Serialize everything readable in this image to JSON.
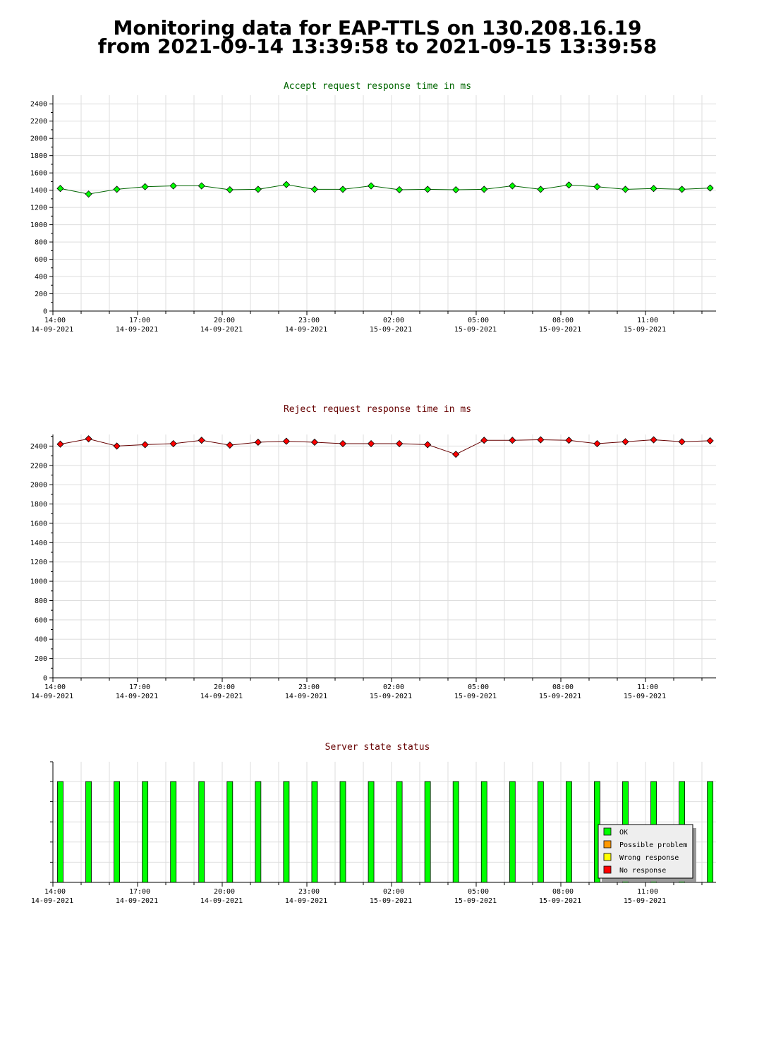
{
  "page": {
    "title_line1": "Monitoring data for EAP-TTLS on 130.208.16.19",
    "title_line2": "from 2021-09-14 13:39:58 to 2021-09-15 13:39:58"
  },
  "colors": {
    "accept_title": "#006600",
    "reject_title": "#660000",
    "status_title": "#660000",
    "accept_line": "#006600",
    "accept_marker": "#00ff00",
    "reject_line": "#660000",
    "reject_marker": "#ff0000",
    "ok_bar": "#00ff00",
    "grid": "#dddddd"
  },
  "x_axis": {
    "labels": [
      {
        "time": "14:00",
        "date": "14-09-2021"
      },
      {
        "time": "17:00",
        "date": "14-09-2021"
      },
      {
        "time": "20:00",
        "date": "14-09-2021"
      },
      {
        "time": "23:00",
        "date": "14-09-2021"
      },
      {
        "time": "02:00",
        "date": "15-09-2021"
      },
      {
        "time": "05:00",
        "date": "15-09-2021"
      },
      {
        "time": "08:00",
        "date": "15-09-2021"
      },
      {
        "time": "11:00",
        "date": "15-09-2021"
      }
    ]
  },
  "chart_data": [
    {
      "type": "line",
      "title": "Accept request response time in ms",
      "y_ticks": [
        "0",
        "200",
        "400",
        "600",
        "800",
        "1000",
        "1200",
        "1400",
        "1600",
        "1800",
        "2000",
        "2200",
        "2400"
      ],
      "ylim": [
        0,
        2500
      ],
      "grid": true,
      "values": [
        1420,
        1355,
        1410,
        1440,
        1450,
        1450,
        1405,
        1410,
        1465,
        1410,
        1410,
        1450,
        1405,
        1410,
        1405,
        1410,
        1450,
        1410,
        1460,
        1440,
        1410,
        1420,
        1410,
        1425
      ]
    },
    {
      "type": "line",
      "title": "Reject request response time in ms",
      "y_ticks": [
        "0",
        "200",
        "400",
        "600",
        "800",
        "1000",
        "1200",
        "1400",
        "1600",
        "1800",
        "2000",
        "2200",
        "2400"
      ],
      "ylim": [
        0,
        2520
      ],
      "grid": true,
      "values": [
        2420,
        2475,
        2400,
        2415,
        2425,
        2460,
        2410,
        2440,
        2450,
        2440,
        2425,
        2425,
        2425,
        2415,
        2315,
        2460,
        2460,
        2465,
        2460,
        2425,
        2445,
        2465,
        2445,
        2455
      ]
    },
    {
      "type": "bar",
      "title": "Server state status",
      "grid": true,
      "status_values": [
        "OK",
        "OK",
        "OK",
        "OK",
        "OK",
        "OK",
        "OK",
        "OK",
        "OK",
        "OK",
        "OK",
        "OK",
        "OK",
        "OK",
        "OK",
        "OK",
        "OK",
        "OK",
        "OK",
        "OK",
        "OK",
        "OK",
        "OK",
        "OK"
      ],
      "legend": [
        {
          "label": "OK",
          "color": "#00ff00"
        },
        {
          "label": "Possible problem",
          "color": "#ff9900"
        },
        {
          "label": "Wrong response",
          "color": "#ffff00"
        },
        {
          "label": "No response",
          "color": "#ff0000"
        }
      ]
    }
  ]
}
